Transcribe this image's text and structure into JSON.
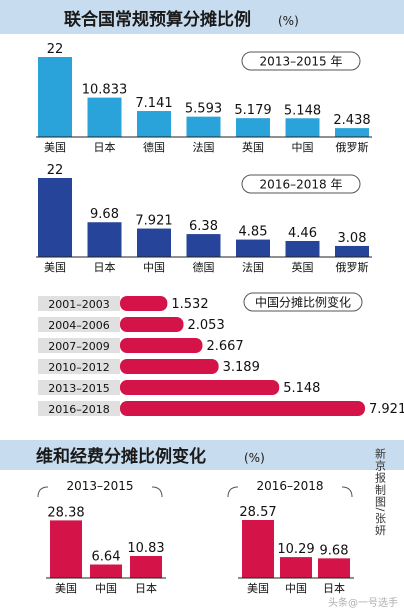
{
  "colors": {
    "light_blue": "#29a3d9",
    "dark_blue": "#25449a",
    "crimson": "#d41448",
    "title_band": "#c8dcef",
    "year_bar": "#e0e0e0",
    "text": "#111111"
  },
  "header": {
    "title": "联合国常规预算分摊比例",
    "unit": "(%)"
  },
  "section2": {
    "title": "维和经费分摊比例变化",
    "unit": "(%)"
  },
  "credit": "新京报制图/张妍",
  "watermark": "头条@一号选手",
  "chart_data": [
    {
      "id": "regular-2013",
      "type": "bar",
      "period_label": "2013–2015 年",
      "categories": [
        "美国",
        "日本",
        "德国",
        "法国",
        "英国",
        "中国",
        "俄罗斯"
      ],
      "value_labels": [
        "22",
        "10.833",
        "7.141",
        "5.593",
        "5.179",
        "5.148",
        "2.438"
      ],
      "values": [
        22,
        10.833,
        7.141,
        5.593,
        5.179,
        5.148,
        2.438
      ],
      "color": "#29a3d9",
      "ylim": [
        0,
        22
      ]
    },
    {
      "id": "regular-2016",
      "type": "bar",
      "period_label": "2016–2018 年",
      "categories": [
        "美国",
        "日本",
        "中国",
        "德国",
        "法国",
        "英国",
        "俄罗斯"
      ],
      "value_labels": [
        "22",
        "9.68",
        "7.921",
        "6.38",
        "4.85",
        "4.46",
        "3.08"
      ],
      "values": [
        22,
        9.68,
        7.921,
        6.38,
        4.85,
        4.46,
        3.08
      ],
      "color": "#25449a",
      "ylim": [
        0,
        22
      ]
    },
    {
      "id": "china-change",
      "type": "bar",
      "orientation": "horizontal",
      "title": "中国分摊比例变化",
      "categories": [
        "2001–2003",
        "2004–2006",
        "2007–2009",
        "2010–2012",
        "2013–2015",
        "2016–2018"
      ],
      "value_labels": [
        "1.532",
        "2.053",
        "2.667",
        "3.189",
        "5.148",
        "7.921"
      ],
      "values": [
        1.532,
        2.053,
        2.667,
        3.189,
        5.148,
        7.921
      ],
      "color": "#d41448"
    },
    {
      "id": "pk-2013",
      "type": "bar",
      "period_label": "2013–2015",
      "categories": [
        "美国",
        "中国",
        "日本"
      ],
      "value_labels": [
        "28.38",
        "6.64",
        "10.83"
      ],
      "values": [
        28.38,
        6.64,
        10.83
      ],
      "color": "#d41448",
      "ylim": [
        0,
        28.57
      ]
    },
    {
      "id": "pk-2016",
      "type": "bar",
      "period_label": "2016–2018",
      "categories": [
        "美国",
        "中国",
        "日本"
      ],
      "value_labels": [
        "28.57",
        "10.29",
        "9.68"
      ],
      "values": [
        28.57,
        10.29,
        9.68
      ],
      "color": "#d41448",
      "ylim": [
        0,
        28.57
      ]
    }
  ]
}
